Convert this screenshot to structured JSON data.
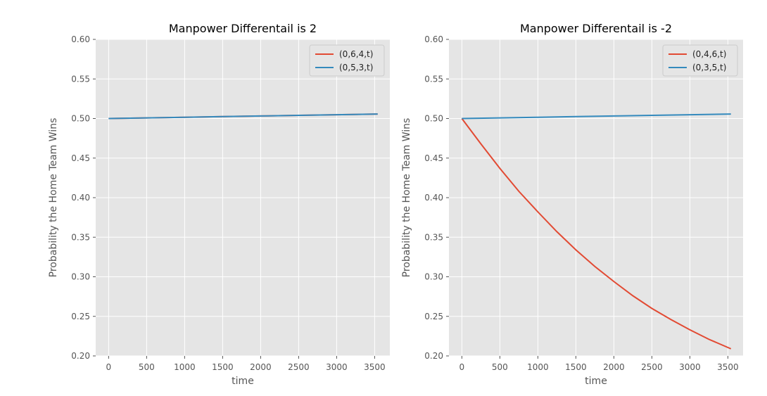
{
  "chart_data": [
    {
      "type": "line",
      "title": "Manpower Differentail is 2",
      "xlabel": "time",
      "ylabel": "Probability the Home Team Wins",
      "xlim": [
        -170,
        3700
      ],
      "ylim": [
        0.2,
        0.6
      ],
      "xticks": [
        0,
        500,
        1000,
        1500,
        2000,
        2500,
        3000,
        3500
      ],
      "xtick_labels": [
        "0",
        "500",
        "1000",
        "1500",
        "2000",
        "2500",
        "3000",
        "3500"
      ],
      "yticks": [
        0.2,
        0.25,
        0.3,
        0.35,
        0.4,
        0.45,
        0.5,
        0.55,
        0.6
      ],
      "ytick_labels": [
        "0.20",
        "0.25",
        "0.30",
        "0.35",
        "0.40",
        "0.45",
        "0.50",
        "0.55",
        "0.60"
      ],
      "grid": true,
      "legend": "top-right",
      "series": [
        {
          "name": "(0,6,4,t)",
          "color": "#e24a33",
          "x": [
            0,
            500,
            1000,
            1500,
            2000,
            2500,
            3000,
            3540
          ],
          "y": [
            0.5,
            0.5008,
            0.5016,
            0.5024,
            0.5032,
            0.504,
            0.5048,
            0.5057
          ]
        },
        {
          "name": "(0,5,3,t)",
          "color": "#348abd",
          "x": [
            0,
            500,
            1000,
            1500,
            2000,
            2500,
            3000,
            3540
          ],
          "y": [
            0.5,
            0.5008,
            0.5016,
            0.5024,
            0.5032,
            0.504,
            0.5048,
            0.5057
          ]
        }
      ]
    },
    {
      "type": "line",
      "title": "Manpower Differentail is -2",
      "xlabel": "time",
      "ylabel": "Probability the Home Team Wins",
      "xlim": [
        -170,
        3700
      ],
      "ylim": [
        0.2,
        0.6
      ],
      "xticks": [
        0,
        500,
        1000,
        1500,
        2000,
        2500,
        3000,
        3500
      ],
      "xtick_labels": [
        "0",
        "500",
        "1000",
        "1500",
        "2000",
        "2500",
        "3000",
        "3500"
      ],
      "yticks": [
        0.2,
        0.25,
        0.3,
        0.35,
        0.4,
        0.45,
        0.5,
        0.55,
        0.6
      ],
      "ytick_labels": [
        "0.20",
        "0.25",
        "0.30",
        "0.35",
        "0.40",
        "0.45",
        "0.50",
        "0.55",
        "0.60"
      ],
      "grid": true,
      "legend": "top-right",
      "series": [
        {
          "name": "(0,4,6,t)",
          "color": "#e24a33",
          "x": [
            0,
            250,
            500,
            750,
            1000,
            1250,
            1500,
            1750,
            2000,
            2250,
            2500,
            2750,
            3000,
            3250,
            3540
          ],
          "y": [
            0.5,
            0.468,
            0.437,
            0.408,
            0.382,
            0.357,
            0.334,
            0.313,
            0.294,
            0.276,
            0.26,
            0.246,
            0.233,
            0.221,
            0.209
          ]
        },
        {
          "name": "(0,3,5,t)",
          "color": "#348abd",
          "x": [
            0,
            500,
            1000,
            1500,
            2000,
            2500,
            3000,
            3540
          ],
          "y": [
            0.5,
            0.5008,
            0.5016,
            0.5024,
            0.5032,
            0.504,
            0.5048,
            0.5057
          ]
        }
      ]
    }
  ]
}
